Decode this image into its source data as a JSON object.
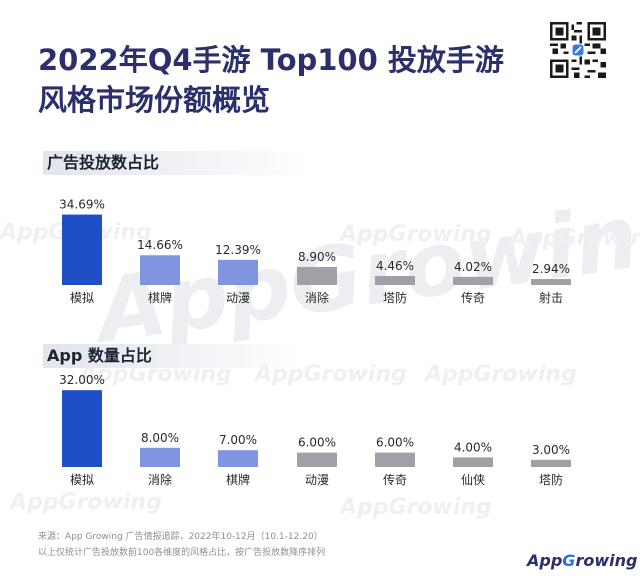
{
  "title_line1": "2022年Q4手游 Top100 投放手游",
  "title_line2": "风格市场份额概览",
  "colors": {
    "highlight": "#1f4fc6",
    "secondary": "#8094e0",
    "neutral": "#9fa1a6",
    "title": "#2b2f6b"
  },
  "icons": {
    "qr": "qr-code-icon",
    "brand": "app-growing-logo-icon"
  },
  "chart_data": [
    {
      "type": "bar",
      "title": "广告投放数占比",
      "categories": [
        "模拟",
        "棋牌",
        "动漫",
        "消除",
        "塔防",
        "传奇",
        "射击"
      ],
      "values": [
        34.69,
        14.66,
        12.39,
        8.9,
        4.46,
        4.02,
        2.94
      ],
      "value_labels": [
        "34.69%",
        "14.66%",
        "12.39%",
        "8.90%",
        "4.46%",
        "4.02%",
        "2.94%"
      ],
      "unit": "%",
      "grid": false,
      "legend": "none"
    },
    {
      "type": "bar",
      "title": "App 数量占比",
      "categories": [
        "模拟",
        "消除",
        "棋牌",
        "动漫",
        "传奇",
        "仙侠",
        "塔防"
      ],
      "values": [
        32.0,
        8.0,
        7.0,
        6.0,
        6.0,
        4.0,
        3.0
      ],
      "value_labels": [
        "32.00%",
        "8.00%",
        "7.00%",
        "6.00%",
        "6.00%",
        "4.00%",
        "3.00%"
      ],
      "unit": "%",
      "grid": false,
      "legend": "none"
    }
  ],
  "watermark": "AppGrowing",
  "footer_line1": "来源：App Growing 广告情报追踪，2022年10-12月（10.1-12.20）",
  "footer_line2": "以上仅统计广告投放数前100各维度的风格占比，按广告投放数降序排列",
  "brand_prefix": "App",
  "brand_g": "G",
  "brand_suffix": "rowing"
}
